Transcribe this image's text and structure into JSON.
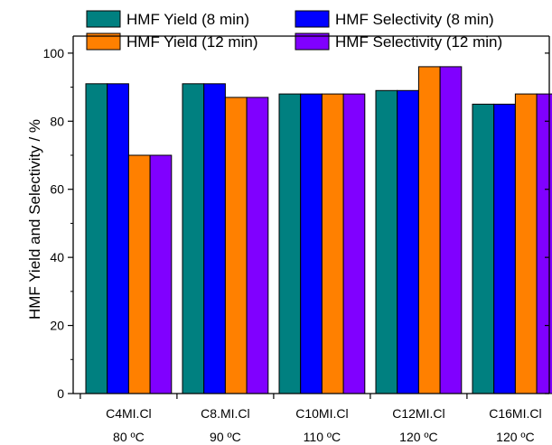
{
  "chart_data": {
    "type": "bar",
    "categories": [
      "C4MI.Cl",
      "C8.MI.Cl",
      "C10MI.Cl",
      "C12MI.Cl",
      "C16MI.Cl"
    ],
    "sub_labels": [
      "80 ºC",
      "90 ºC",
      "110 ºC",
      "120 ºC",
      "120 ºC"
    ],
    "series": [
      {
        "name": "HMF Yield (8 min)",
        "color": "#008080",
        "values": [
          91,
          91,
          88,
          89,
          85
        ]
      },
      {
        "name": "HMF Selectivity (8 min)",
        "color": "#0000ff",
        "values": [
          91,
          91,
          88,
          89,
          85
        ]
      },
      {
        "name": "HMF Yield (12 min)",
        "color": "#ff8000",
        "values": [
          70,
          87,
          88,
          96,
          88
        ]
      },
      {
        "name": "HMF Selectivity (12 min)",
        "color": "#8000ff",
        "values": [
          70,
          87,
          88,
          96,
          88
        ]
      }
    ],
    "xlabel": "",
    "ylabel": "HMF Yield and Selectivity / %",
    "ylim": [
      0,
      105
    ],
    "yticks": [
      "0",
      "20",
      "40",
      "60",
      "80",
      "100"
    ],
    "grid": false,
    "legend_position": "top"
  }
}
